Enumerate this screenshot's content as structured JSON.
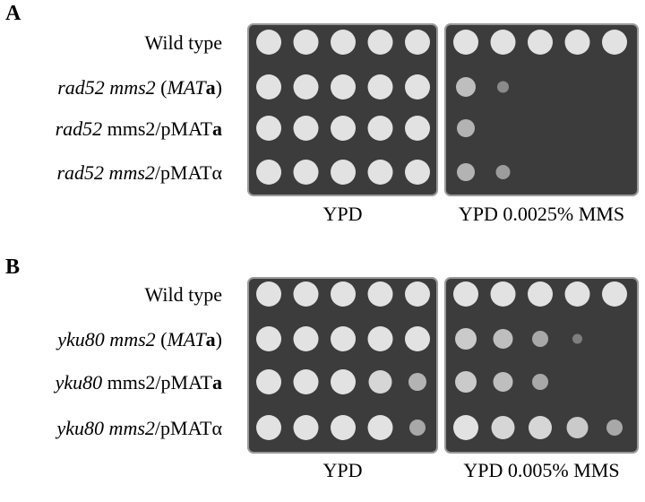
{
  "panels": [
    {
      "label": "A",
      "strains": [
        [
          {
            "text": "Wild type"
          }
        ],
        [
          {
            "text": "rad52 mms2",
            "style": "italic"
          },
          {
            "text": " ("
          },
          {
            "text": "MAT",
            "style": "italic"
          },
          {
            "text": "a",
            "style": "bold"
          },
          {
            "text": ")"
          }
        ],
        [
          {
            "text": "rad52",
            "style": "italic"
          },
          {
            "text": " mms2/pMAT"
          },
          {
            "text": "a",
            "style": "bold"
          }
        ],
        [
          {
            "text": "rad52 mms2",
            "style": "italic"
          },
          {
            "text": "/pMATα"
          }
        ]
      ],
      "plates": [
        "YPD",
        "YPD 0.0025% MMS"
      ]
    },
    {
      "label": "B",
      "strains": [
        [
          {
            "text": "Wild type"
          }
        ],
        [
          {
            "text": "yku80 mms2",
            "style": "italic"
          },
          {
            "text": " ("
          },
          {
            "text": "MAT",
            "style": "italic"
          },
          {
            "text": "a",
            "style": "bold"
          },
          {
            "text": ")"
          }
        ],
        [
          {
            "text": "yku80",
            "style": "italic"
          },
          {
            "text": " mms2/pMAT"
          },
          {
            "text": "a",
            "style": "bold"
          }
        ],
        [
          {
            "text": "yku80 mms2",
            "style": "italic"
          },
          {
            "text": "/pMATα"
          }
        ]
      ],
      "plates": [
        "YPD",
        "YPD 0.005% MMS"
      ]
    }
  ]
}
